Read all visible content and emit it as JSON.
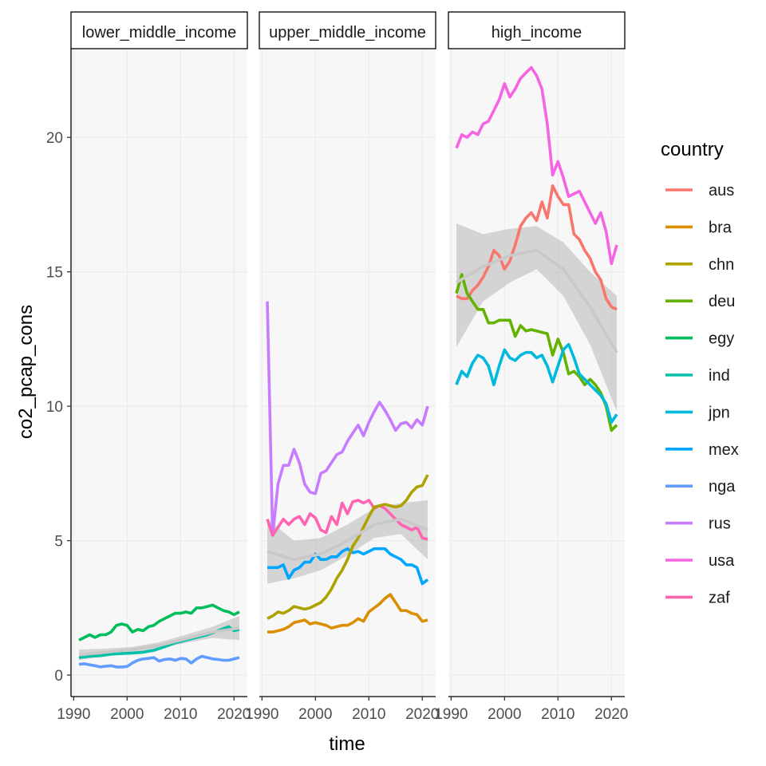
{
  "chart_data": {
    "type": "line",
    "title": "",
    "xlabel": "time",
    "ylabel": "co2_pcap_cons",
    "xlim": [
      1989.5,
      2022.5
    ],
    "ylim": [
      -0.8,
      23.3
    ],
    "x_ticks": [
      1990,
      2000,
      2010,
      2020
    ],
    "y_ticks": [
      0,
      5,
      10,
      15,
      20
    ],
    "grid": true,
    "facet_by": "income group",
    "legend": {
      "title": "country",
      "placement": "right",
      "entries": [
        {
          "label": "aus",
          "color": "#F8766D"
        },
        {
          "label": "bra",
          "color": "#DB8E00"
        },
        {
          "label": "chn",
          "color": "#AEA200"
        },
        {
          "label": "deu",
          "color": "#64B200"
        },
        {
          "label": "egy",
          "color": "#00BD5C"
        },
        {
          "label": "ind",
          "color": "#00C1A7"
        },
        {
          "label": "jpn",
          "color": "#00BADE"
        },
        {
          "label": "mex",
          "color": "#00A6FF"
        },
        {
          "label": "nga",
          "color": "#619CFF"
        },
        {
          "label": "rus",
          "color": "#C77CFF"
        },
        {
          "label": "usa",
          "color": "#F564E3"
        },
        {
          "label": "zaf",
          "color": "#FF64B0"
        }
      ]
    },
    "panels": [
      {
        "label": "lower_middle_income",
        "series": [
          {
            "name": "egy",
            "x": [
              1991,
              1992,
              1993,
              1994,
              1995,
              1996,
              1997,
              1998,
              1999,
              2000,
              2001,
              2002,
              2003,
              2004,
              2005,
              2006,
              2007,
              2008,
              2009,
              2010,
              2011,
              2012,
              2013,
              2014,
              2015,
              2016,
              2017,
              2018,
              2019,
              2020,
              2021
            ],
            "y": [
              1.3,
              1.4,
              1.5,
              1.4,
              1.5,
              1.5,
              1.6,
              1.85,
              1.9,
              1.85,
              1.6,
              1.7,
              1.65,
              1.8,
              1.85,
              2.0,
              2.1,
              2.2,
              2.3,
              2.3,
              2.35,
              2.3,
              2.5,
              2.5,
              2.55,
              2.6,
              2.5,
              2.4,
              2.35,
              2.25,
              2.35
            ]
          },
          {
            "name": "ind",
            "x": [
              1991,
              1993,
              1995,
              1997,
              1999,
              2001,
              2003,
              2005,
              2007,
              2009,
              2011,
              2013,
              2015,
              2017,
              2019,
              2020,
              2021
            ],
            "y": [
              0.65,
              0.7,
              0.72,
              0.78,
              0.8,
              0.82,
              0.85,
              0.92,
              1.05,
              1.2,
              1.3,
              1.4,
              1.5,
              1.65,
              1.8,
              1.65,
              1.7
            ]
          },
          {
            "name": "nga",
            "x": [
              1991,
              1992,
              1993,
              1994,
              1995,
              1996,
              1997,
              1998,
              1999,
              2000,
              2001,
              2002,
              2003,
              2004,
              2005,
              2006,
              2007,
              2008,
              2009,
              2010,
              2011,
              2012,
              2013,
              2014,
              2015,
              2016,
              2017,
              2018,
              2019,
              2020,
              2021
            ],
            "y": [
              0.4,
              0.42,
              0.38,
              0.35,
              0.3,
              0.33,
              0.35,
              0.3,
              0.3,
              0.32,
              0.45,
              0.55,
              0.6,
              0.62,
              0.65,
              0.52,
              0.58,
              0.6,
              0.55,
              0.62,
              0.6,
              0.45,
              0.6,
              0.7,
              0.65,
              0.6,
              0.58,
              0.55,
              0.55,
              0.6,
              0.65
            ]
          }
        ],
        "trend": {
          "x": [
            1991,
            1996,
            2001,
            2006,
            2011,
            2016,
            2021
          ],
          "y": [
            0.75,
            0.85,
            0.95,
            1.1,
            1.35,
            1.6,
            1.75
          ],
          "lower": [
            0.55,
            0.72,
            0.85,
            0.98,
            1.2,
            1.38,
            1.3
          ],
          "upper": [
            0.95,
            0.98,
            1.05,
            1.22,
            1.5,
            1.8,
            2.2
          ]
        }
      },
      {
        "label": "upper_middle_income",
        "series": [
          {
            "name": "rus",
            "x": [
              1991,
              1992,
              1993,
              1994,
              1995,
              1996,
              1997,
              1998,
              1999,
              2000,
              2001,
              2002,
              2003,
              2004,
              2005,
              2006,
              2007,
              2008,
              2009,
              2010,
              2011,
              2012,
              2013,
              2014,
              2015,
              2016,
              2017,
              2018,
              2019,
              2020,
              2021
            ],
            "y": [
              13.9,
              5.2,
              7.1,
              7.8,
              7.8,
              8.4,
              7.9,
              7.1,
              6.8,
              6.75,
              7.5,
              7.6,
              7.9,
              8.2,
              8.3,
              8.7,
              9.0,
              9.3,
              8.9,
              9.4,
              9.8,
              10.15,
              9.85,
              9.5,
              9.1,
              9.35,
              9.4,
              9.2,
              9.5,
              9.3,
              10.0
            ]
          },
          {
            "name": "zaf",
            "x": [
              1991,
              1992,
              1993,
              1994,
              1995,
              1996,
              1997,
              1998,
              1999,
              2000,
              2001,
              2002,
              2003,
              2004,
              2005,
              2006,
              2007,
              2008,
              2009,
              2010,
              2011,
              2012,
              2013,
              2014,
              2015,
              2016,
              2017,
              2018,
              2019,
              2020,
              2021
            ],
            "y": [
              5.8,
              5.2,
              5.5,
              5.8,
              5.6,
              5.8,
              5.9,
              5.6,
              6.0,
              5.85,
              5.4,
              5.3,
              5.9,
              5.6,
              6.4,
              6.0,
              6.45,
              6.5,
              6.4,
              6.5,
              6.2,
              6.3,
              6.2,
              6.0,
              5.8,
              5.6,
              5.5,
              5.4,
              5.5,
              5.1,
              5.05
            ]
          },
          {
            "name": "mex",
            "x": [
              1991,
              1992,
              1993,
              1994,
              1995,
              1996,
              1997,
              1998,
              1999,
              2000,
              2001,
              2002,
              2003,
              2004,
              2005,
              2006,
              2007,
              2008,
              2009,
              2010,
              2011,
              2012,
              2013,
              2014,
              2015,
              2016,
              2017,
              2018,
              2019,
              2020,
              2021
            ],
            "y": [
              4.0,
              4.0,
              4.0,
              4.1,
              3.6,
              3.9,
              4.0,
              4.2,
              4.2,
              4.5,
              4.3,
              4.3,
              4.4,
              4.4,
              4.6,
              4.7,
              4.55,
              4.6,
              4.5,
              4.6,
              4.7,
              4.7,
              4.7,
              4.5,
              4.4,
              4.3,
              4.1,
              4.1,
              4.0,
              3.4,
              3.55
            ]
          },
          {
            "name": "chn",
            "x": [
              1991,
              1992,
              1993,
              1994,
              1995,
              1996,
              1997,
              1998,
              1999,
              2000,
              2001,
              2002,
              2003,
              2004,
              2005,
              2006,
              2007,
              2008,
              2009,
              2010,
              2011,
              2012,
              2013,
              2014,
              2015,
              2016,
              2017,
              2018,
              2019,
              2020,
              2021
            ],
            "y": [
              2.1,
              2.2,
              2.35,
              2.3,
              2.4,
              2.55,
              2.5,
              2.45,
              2.5,
              2.6,
              2.7,
              2.9,
              3.2,
              3.6,
              3.9,
              4.3,
              4.8,
              5.1,
              5.5,
              5.9,
              6.25,
              6.3,
              6.35,
              6.3,
              6.25,
              6.3,
              6.5,
              6.8,
              7.0,
              7.05,
              7.45
            ]
          },
          {
            "name": "bra",
            "x": [
              1991,
              1992,
              1993,
              1994,
              1995,
              1996,
              1997,
              1998,
              1999,
              2000,
              2001,
              2002,
              2003,
              2004,
              2005,
              2006,
              2007,
              2008,
              2009,
              2010,
              2011,
              2012,
              2013,
              2014,
              2015,
              2016,
              2017,
              2018,
              2019,
              2020,
              2021
            ],
            "y": [
              1.6,
              1.6,
              1.65,
              1.7,
              1.8,
              1.95,
              2.0,
              2.05,
              1.9,
              1.95,
              1.9,
              1.85,
              1.75,
              1.8,
              1.85,
              1.85,
              1.95,
              2.1,
              2.0,
              2.35,
              2.5,
              2.65,
              2.85,
              3.0,
              2.7,
              2.4,
              2.4,
              2.3,
              2.25,
              2.0,
              2.05
            ]
          }
        ],
        "trend": {
          "x": [
            1991,
            1996,
            2001,
            2006,
            2011,
            2016,
            2021
          ],
          "y": [
            4.6,
            4.3,
            4.5,
            5.0,
            5.6,
            5.8,
            5.4
          ],
          "lower": [
            3.4,
            3.6,
            3.9,
            4.45,
            5.1,
            5.25,
            4.3
          ],
          "upper": [
            5.8,
            5.0,
            5.1,
            5.6,
            6.2,
            6.4,
            6.5
          ]
        }
      },
      {
        "label": "high_income",
        "series": [
          {
            "name": "usa",
            "x": [
              1991,
              1992,
              1993,
              1994,
              1995,
              1996,
              1997,
              1998,
              1999,
              2000,
              2001,
              2002,
              2003,
              2004,
              2005,
              2006,
              2007,
              2008,
              2009,
              2010,
              2011,
              2012,
              2013,
              2014,
              2015,
              2016,
              2017,
              2018,
              2019,
              2020,
              2021
            ],
            "y": [
              19.6,
              20.1,
              20.0,
              20.2,
              20.1,
              20.5,
              20.6,
              21.0,
              21.4,
              22.0,
              21.5,
              21.8,
              22.2,
              22.4,
              22.6,
              22.3,
              21.8,
              20.5,
              18.6,
              19.1,
              18.5,
              17.8,
              17.9,
              18.0,
              17.6,
              17.2,
              16.8,
              17.2,
              16.5,
              15.3,
              16.0
            ]
          },
          {
            "name": "aus",
            "x": [
              1991,
              1992,
              1993,
              1994,
              1995,
              1996,
              1997,
              1998,
              1999,
              2000,
              2001,
              2002,
              2003,
              2004,
              2005,
              2006,
              2007,
              2008,
              2009,
              2010,
              2011,
              2012,
              2013,
              2014,
              2015,
              2016,
              2017,
              2018,
              2019,
              2020,
              2021
            ],
            "y": [
              14.1,
              14.0,
              14.0,
              14.3,
              14.5,
              14.8,
              15.2,
              15.8,
              15.6,
              15.1,
              15.4,
              16.0,
              16.7,
              17.0,
              17.2,
              16.9,
              17.6,
              17.0,
              18.2,
              17.8,
              17.5,
              17.5,
              16.4,
              16.2,
              15.8,
              15.5,
              15.0,
              14.7,
              14.0,
              13.7,
              13.6
            ]
          },
          {
            "name": "deu",
            "x": [
              1991,
              1992,
              1993,
              1994,
              1995,
              1996,
              1997,
              1998,
              1999,
              2000,
              2001,
              2002,
              2003,
              2004,
              2005,
              2006,
              2007,
              2008,
              2009,
              2010,
              2011,
              2012,
              2013,
              2014,
              2015,
              2016,
              2017,
              2018,
              2019,
              2020,
              2021
            ],
            "y": [
              14.2,
              14.9,
              14.2,
              13.9,
              13.6,
              13.6,
              13.1,
              13.1,
              13.2,
              13.2,
              13.2,
              12.6,
              13.0,
              12.8,
              12.85,
              12.8,
              12.75,
              12.7,
              11.9,
              12.5,
              12.0,
              11.2,
              11.3,
              11.1,
              10.8,
              11.0,
              10.8,
              10.5,
              10.0,
              9.1,
              9.3
            ]
          },
          {
            "name": "jpn",
            "x": [
              1991,
              1992,
              1993,
              1994,
              1995,
              1996,
              1997,
              1998,
              1999,
              2000,
              2001,
              2002,
              2003,
              2004,
              2005,
              2006,
              2007,
              2008,
              2009,
              2010,
              2011,
              2012,
              2013,
              2014,
              2015,
              2016,
              2017,
              2018,
              2019,
              2020,
              2021
            ],
            "y": [
              10.8,
              11.3,
              11.1,
              11.6,
              11.9,
              11.8,
              11.5,
              10.8,
              11.5,
              12.1,
              11.8,
              11.7,
              11.9,
              12.0,
              12.0,
              11.8,
              11.9,
              11.5,
              10.9,
              11.5,
              12.1,
              12.3,
              11.8,
              11.2,
              11.0,
              10.8,
              10.6,
              10.4,
              10.1,
              9.4,
              9.7
            ]
          }
        ],
        "trend": {
          "x": [
            1991,
            1996,
            2001,
            2006,
            2011,
            2016,
            2021
          ],
          "y": [
            14.6,
            15.2,
            15.6,
            15.8,
            15.1,
            13.7,
            12.0
          ],
          "lower": [
            12.2,
            13.9,
            14.6,
            15.1,
            14.1,
            12.3,
            9.8
          ],
          "upper": [
            16.8,
            16.4,
            16.6,
            16.7,
            16.1,
            15.0,
            14.1
          ]
        }
      }
    ]
  }
}
